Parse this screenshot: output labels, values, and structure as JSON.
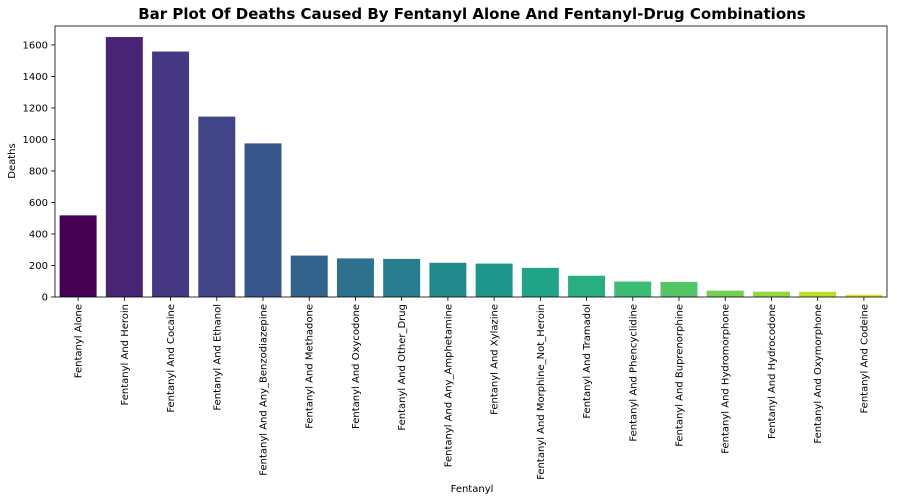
{
  "chart_data": {
    "type": "bar",
    "title": "Bar Plot Of Deaths Caused By Fentanyl Alone And Fentanyl-Drug Combinations",
    "xlabel": "Fentanyl",
    "ylabel": "Deaths",
    "ylim": [
      0,
      1720
    ],
    "yticks": [
      "0",
      "200",
      "400",
      "600",
      "800",
      "1000",
      "1200",
      "1400",
      "1600"
    ],
    "grid": false,
    "colormap": "viridis",
    "categories": [
      "Fentanyl Alone",
      "Fentanyl And Heroin",
      "Fentanyl And Cocaine",
      "Fentanyl And Ethanol",
      "Fentanyl And Any_Benzodiazepine",
      "Fentanyl And Methadone",
      "Fentanyl And Oxycodone",
      "Fentanyl And Other_Drug",
      "Fentanyl And Any_Amphetamine",
      "Fentanyl And Xylazine",
      "Fentanyl And Morphine_Not_Heroin",
      "Fentanyl And Tramadol",
      "Fentanyl And Phencyclidine",
      "Fentanyl And Buprenorphine",
      "Fentanyl And Hydromorphone",
      "Fentanyl And Hydrocodone",
      "Fentanyl And Oxymorphone",
      "Fentanyl And Codeine"
    ],
    "values": [
      518,
      1650,
      1558,
      1145,
      975,
      263,
      245,
      242,
      217,
      212,
      185,
      135,
      98,
      96,
      40,
      34,
      33,
      14
    ],
    "colors": [
      "#440154",
      "#482475",
      "#453781",
      "#414487",
      "#39568c",
      "#33638d",
      "#2d718e",
      "#287d8e",
      "#238a8d",
      "#1f968b",
      "#20a387",
      "#29af7f",
      "#3cbb75",
      "#55c667",
      "#73d055",
      "#95d840",
      "#b8de29",
      "#dce319"
    ]
  }
}
